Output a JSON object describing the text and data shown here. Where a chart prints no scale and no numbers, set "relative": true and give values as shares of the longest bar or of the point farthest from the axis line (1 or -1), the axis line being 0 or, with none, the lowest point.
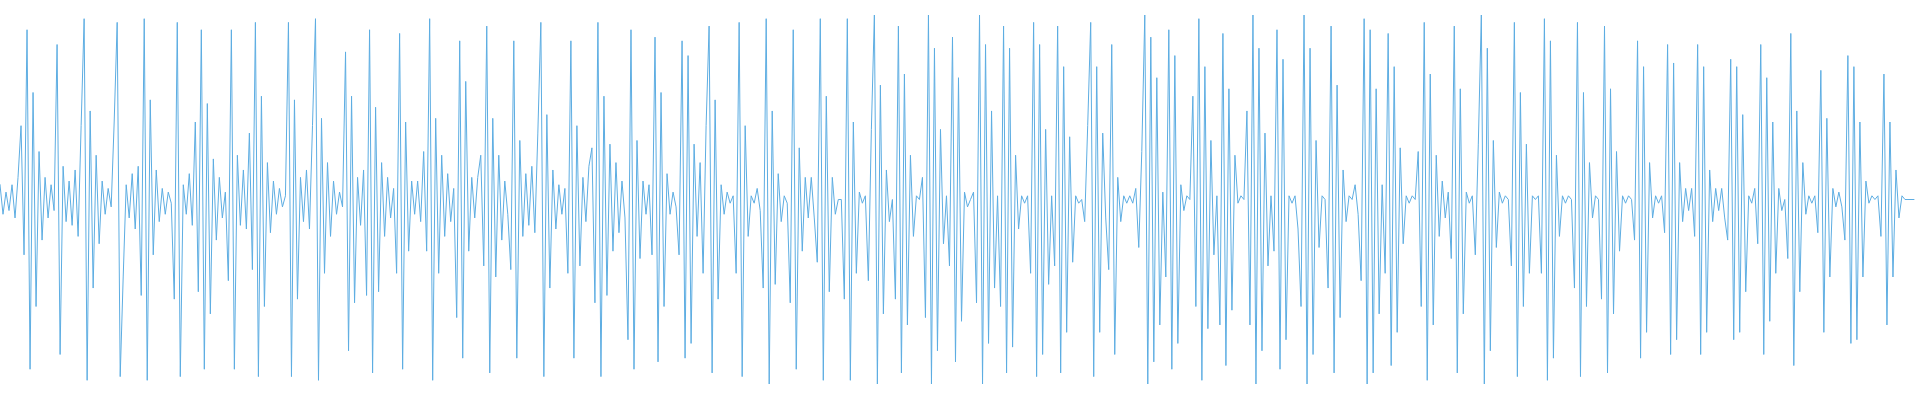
{
  "chart_data": {
    "type": "line",
    "relative": true,
    "color": "#5dade2",
    "marker": "none",
    "line_style": "solid",
    "tick_labels": false,
    "categories": [
      null,
      null,
      null,
      null,
      null,
      null,
      null,
      null,
      null,
      null,
      null,
      null,
      null,
      null,
      null,
      null,
      null,
      null,
      null,
      null,
      null,
      null,
      null,
      null,
      null,
      null,
      null,
      null,
      null,
      null,
      null,
      null,
      null,
      null,
      null,
      null,
      null,
      null,
      null,
      null,
      null,
      null,
      null,
      null,
      null,
      null,
      null,
      null,
      null,
      null,
      null,
      null,
      null,
      null,
      null,
      null,
      null,
      null,
      null,
      null,
      null,
      null,
      null,
      null,
      null,
      null,
      null,
      null,
      null,
      null,
      null,
      null,
      null,
      null,
      null,
      null,
      null,
      null,
      null,
      null,
      null,
      null,
      null,
      null,
      null,
      null,
      null,
      null,
      null,
      null,
      null,
      null,
      null,
      null,
      null,
      null,
      null,
      null,
      null,
      null,
      null,
      null,
      null,
      null,
      null,
      null,
      null,
      null,
      null,
      null,
      null,
      null,
      null,
      null,
      null,
      null,
      null,
      null,
      null,
      null,
      null,
      null,
      null,
      null,
      null,
      null,
      null,
      null,
      null,
      null,
      null,
      null,
      null,
      null,
      null,
      null,
      null,
      null,
      null,
      null,
      null,
      null,
      null,
      null,
      null,
      null,
      null,
      null,
      null,
      null,
      null,
      null,
      null,
      null,
      null,
      null,
      null,
      null,
      null,
      null,
      null,
      null,
      null,
      null,
      null,
      null,
      null,
      null,
      null,
      null,
      null,
      null,
      null,
      null,
      null,
      null,
      null,
      null,
      null,
      null,
      null,
      null,
      null,
      null,
      null,
      null,
      null,
      null,
      null,
      null,
      null,
      null,
      null,
      null,
      null,
      null,
      null,
      null,
      null,
      null,
      null,
      null,
      null,
      null,
      null,
      null,
      null,
      null,
      null,
      null,
      null,
      null,
      null,
      null,
      null,
      null,
      null,
      null,
      null,
      null,
      null,
      null,
      null,
      null,
      null,
      null,
      null,
      null,
      null,
      null,
      null,
      null,
      null,
      null,
      null,
      null,
      null,
      null,
      null,
      null,
      null,
      null,
      null,
      null,
      null,
      null,
      null,
      null,
      null,
      null,
      null,
      null,
      null,
      null,
      null,
      null,
      null,
      null,
      null,
      null,
      null,
      null,
      null,
      null,
      null,
      null,
      null,
      null,
      null,
      null,
      null,
      null,
      null,
      null,
      null,
      null,
      null,
      null,
      null,
      null,
      null,
      null,
      null,
      null,
      null,
      null,
      null,
      null,
      null,
      null,
      null,
      null,
      null,
      null,
      null,
      null,
      null,
      null,
      null,
      null,
      null,
      null,
      null,
      null,
      null,
      null,
      null,
      null,
      null,
      null,
      null,
      null,
      null,
      null,
      null,
      null,
      null,
      null,
      null,
      null,
      null,
      null,
      null,
      null,
      null,
      null,
      null,
      null,
      null,
      null,
      null,
      null,
      null,
      null,
      null,
      null,
      null,
      null,
      null,
      null,
      null,
      null,
      null,
      null,
      null,
      null,
      null,
      null,
      null,
      null,
      null,
      null,
      null,
      null,
      null,
      null,
      null,
      null,
      null,
      null,
      null,
      null,
      null,
      null,
      null,
      null,
      null,
      null,
      null,
      null,
      null,
      null,
      null,
      null,
      null,
      null,
      null,
      null,
      null,
      null,
      null,
      null,
      null,
      null,
      null,
      null,
      null,
      null,
      null,
      null,
      null,
      null,
      null,
      null,
      null,
      null,
      null,
      null,
      null,
      null,
      null,
      null,
      null,
      null,
      null,
      null,
      null,
      null,
      null,
      null,
      null,
      null,
      null,
      null,
      null,
      null,
      null,
      null,
      null,
      null,
      null,
      null,
      null,
      null,
      null,
      null,
      null,
      null,
      null,
      null,
      null,
      null,
      null,
      null,
      null,
      null,
      null,
      null,
      null,
      null,
      null,
      null,
      null,
      null,
      null,
      null,
      null,
      null,
      null,
      null,
      null,
      null,
      null,
      null,
      null,
      null,
      null,
      null,
      null,
      null,
      null,
      null,
      null,
      null,
      null,
      null,
      null,
      null,
      null,
      null,
      null,
      null,
      null,
      null,
      null,
      null,
      null,
      null,
      null,
      null,
      null,
      null,
      null,
      null,
      null,
      null,
      null,
      null,
      null,
      null,
      null,
      null,
      null,
      null,
      null,
      null,
      null,
      null,
      null,
      null,
      null,
      null,
      null,
      null,
      null,
      null,
      null,
      null,
      null,
      null,
      null,
      null,
      null,
      null,
      null,
      null,
      null,
      null,
      null,
      null,
      null,
      null,
      null,
      null,
      null,
      null,
      null,
      null,
      null,
      null,
      null,
      null,
      null,
      null,
      null,
      null,
      null,
      null,
      null,
      null,
      null,
      null,
      null,
      null,
      null,
      null,
      null,
      null,
      null,
      null,
      null,
      null,
      null,
      null,
      null,
      null,
      null,
      null,
      null,
      null,
      null,
      null,
      null,
      null,
      null,
      null,
      null,
      null,
      null,
      null,
      null,
      null,
      null,
      null,
      null,
      null,
      null,
      null,
      null,
      null,
      null,
      null,
      null,
      null,
      null,
      null,
      null,
      null,
      null,
      null,
      null,
      null,
      null,
      null,
      null,
      null,
      null,
      null,
      null,
      null,
      null,
      null,
      null,
      null,
      null,
      null,
      null,
      null,
      null,
      null,
      null,
      null,
      null,
      null,
      null,
      null,
      null,
      null,
      null,
      null,
      null,
      null,
      null,
      null,
      null,
      null,
      null,
      null,
      null,
      null,
      null,
      null,
      null,
      null,
      null,
      null,
      null,
      null,
      null,
      null
    ],
    "values": [
      0.54,
      0.46,
      0.52,
      0.47,
      0.54,
      0.45,
      0.56,
      0.7,
      0.35,
      0.96,
      0.04,
      0.79,
      0.21,
      0.63,
      0.39,
      0.56,
      0.45,
      0.54,
      0.47,
      0.92,
      0.08,
      0.59,
      0.44,
      0.55,
      0.43,
      0.58,
      0.4,
      0.7,
      0.99,
      0.01,
      0.74,
      0.26,
      0.62,
      0.38,
      0.55,
      0.46,
      0.53,
      0.48,
      0.71,
      0.98,
      0.02,
      0.29,
      0.54,
      0.45,
      0.57,
      0.42,
      0.59,
      0.24,
      0.99,
      0.01,
      0.77,
      0.35,
      0.58,
      0.44,
      0.53,
      0.46,
      0.52,
      0.49,
      0.23,
      0.98,
      0.02,
      0.54,
      0.46,
      0.57,
      0.43,
      0.71,
      0.25,
      0.96,
      0.04,
      0.76,
      0.19,
      0.61,
      0.39,
      0.56,
      0.45,
      0.52,
      0.28,
      0.96,
      0.04,
      0.62,
      0.43,
      0.58,
      0.42,
      0.68,
      0.31,
      0.98,
      0.02,
      0.78,
      0.21,
      0.6,
      0.41,
      0.55,
      0.46,
      0.53,
      0.48,
      0.51,
      0.98,
      0.02,
      0.77,
      0.23,
      0.56,
      0.44,
      0.58,
      0.42,
      0.7,
      0.99,
      0.01,
      0.72,
      0.3,
      0.6,
      0.4,
      0.55,
      0.46,
      0.52,
      0.48,
      0.9,
      0.09,
      0.78,
      0.22,
      0.56,
      0.43,
      0.58,
      0.24,
      0.96,
      0.03,
      0.75,
      0.25,
      0.6,
      0.4,
      0.56,
      0.45,
      0.53,
      0.3,
      0.95,
      0.04,
      0.71,
      0.36,
      0.55,
      0.46,
      0.55,
      0.44,
      0.63,
      0.36,
      0.99,
      0.01,
      0.72,
      0.3,
      0.62,
      0.4,
      0.57,
      0.44,
      0.53,
      0.18,
      0.93,
      0.07,
      0.82,
      0.36,
      0.56,
      0.45,
      0.56,
      0.62,
      0.32,
      0.97,
      0.03,
      0.72,
      0.29,
      0.62,
      0.39,
      0.55,
      0.46,
      0.31,
      0.93,
      0.07,
      0.66,
      0.4,
      0.57,
      0.43,
      0.59,
      0.41,
      0.68,
      0.98,
      0.02,
      0.73,
      0.26,
      0.58,
      0.42,
      0.54,
      0.46,
      0.53,
      0.3,
      0.93,
      0.07,
      0.7,
      0.32,
      0.56,
      0.44,
      0.59,
      0.64,
      0.22,
      0.98,
      0.02,
      0.78,
      0.24,
      0.65,
      0.36,
      0.6,
      0.41,
      0.55,
      0.45,
      0.12,
      0.96,
      0.04,
      0.66,
      0.34,
      0.55,
      0.46,
      0.54,
      0.35,
      0.94,
      0.06,
      0.79,
      0.21,
      0.57,
      0.46,
      0.52,
      0.48,
      0.35,
      0.93,
      0.07,
      0.89,
      0.11,
      0.65,
      0.4,
      0.6,
      0.3,
      0.7,
      0.97,
      0.03,
      0.77,
      0.23,
      0.54,
      0.46,
      0.52,
      0.49,
      0.51,
      0.3,
      0.98,
      0.02,
      0.7,
      0.4,
      0.51,
      0.49,
      0.53,
      0.47,
      0.26,
      0.99,
      0.0,
      0.74,
      0.27,
      0.57,
      0.44,
      0.51,
      0.49,
      0.22,
      0.96,
      0.04,
      0.64,
      0.36,
      0.56,
      0.45,
      0.56,
      0.45,
      0.33,
      0.99,
      0.01,
      0.78,
      0.25,
      0.56,
      0.46,
      0.5,
      0.5,
      0.23,
      0.99,
      0.01,
      0.71,
      0.3,
      0.52,
      0.49,
      0.51,
      0.28,
      0.69,
      1.0,
      0.0,
      0.81,
      0.19,
      0.58,
      0.44,
      0.5,
      0.23,
      0.97,
      0.03,
      0.84,
      0.16,
      0.62,
      0.4,
      0.51,
      0.5,
      0.56,
      0.18,
      1.0,
      0.0,
      0.91,
      0.09,
      0.69,
      0.38,
      0.51,
      0.32,
      0.94,
      0.06,
      0.83,
      0.17,
      0.52,
      0.48,
      0.5,
      0.52,
      0.22,
      1.0,
      0.0,
      0.92,
      0.11,
      0.74,
      0.26,
      0.51,
      0.21,
      0.97,
      0.03,
      0.91,
      0.1,
      0.62,
      0.42,
      0.51,
      0.49,
      0.51,
      0.3,
      0.98,
      0.02,
      0.92,
      0.08,
      0.69,
      0.27,
      0.51,
      0.32,
      0.97,
      0.03,
      0.86,
      0.14,
      0.67,
      0.33,
      0.51,
      0.49,
      0.5,
      0.44,
      0.7,
      0.98,
      0.02,
      0.86,
      0.14,
      0.68,
      0.45,
      0.31,
      0.92,
      0.08,
      0.56,
      0.44,
      0.51,
      0.49,
      0.51,
      0.49,
      0.53,
      0.37,
      0.63,
      1.0,
      0.0,
      0.94,
      0.06,
      0.83,
      0.16,
      0.52,
      0.29,
      0.96,
      0.04,
      0.89,
      0.11,
      0.54,
      0.47,
      0.51,
      0.5,
      0.78,
      0.21,
      0.99,
      0.01,
      0.86,
      0.15,
      0.66,
      0.35,
      0.51,
      0.16,
      0.95,
      0.05,
      0.8,
      0.2,
      0.62,
      0.49,
      0.51,
      0.5,
      0.74,
      0.16,
      1.0,
      0.0,
      0.91,
      0.09,
      0.68,
      0.32,
      0.51,
      0.36,
      0.96,
      0.04,
      0.88,
      0.12,
      0.51,
      0.49,
      0.51,
      0.42,
      0.21,
      1.0,
      0.0,
      0.91,
      0.08,
      0.66,
      0.37,
      0.51,
      0.5,
      0.26,
      0.97,
      0.03,
      0.81,
      0.18,
      0.58,
      0.44,
      0.51,
      0.5,
      0.54,
      0.46,
      0.28,
      0.99,
      0.0,
      0.96,
      0.03,
      0.8,
      0.19,
      0.54,
      0.3,
      0.95,
      0.05,
      0.86,
      0.14,
      0.64,
      0.38,
      0.51,
      0.49,
      0.51,
      0.5,
      0.63,
      0.21,
      0.98,
      0.01,
      0.84,
      0.16,
      0.62,
      0.4,
      0.55,
      0.45,
      0.52,
      0.34,
      0.97,
      0.03,
      0.8,
      0.19,
      0.52,
      0.49,
      0.51,
      0.35,
      0.65,
      1.0,
      0.0,
      0.91,
      0.09,
      0.66,
      0.37,
      0.52,
      0.49,
      0.51,
      0.5,
      0.32,
      0.98,
      0.02,
      0.79,
      0.21,
      0.65,
      0.3,
      0.51,
      0.5,
      0.51,
      0.3,
      0.99,
      0.01,
      0.93,
      0.07,
      0.62,
      0.4,
      0.51,
      0.49,
      0.51,
      0.5,
      0.26,
      0.98,
      0.02,
      0.79,
      0.21,
      0.6,
      0.45,
      0.51,
      0.5,
      0.23,
      0.97,
      0.03,
      0.8,
      0.19,
      0.63,
      0.36,
      0.51,
      0.49,
      0.51,
      0.5,
      0.39,
      0.93,
      0.07,
      0.86,
      0.14,
      0.6,
      0.45,
      0.51,
      0.49,
      0.51,
      0.41,
      0.92,
      0.08,
      0.87,
      0.12,
      0.6,
      0.44,
      0.53,
      0.47,
      0.53,
      0.4,
      0.92,
      0.08,
      0.86,
      0.14,
      0.58,
      0.44,
      0.53,
      0.47,
      0.53,
      0.45,
      0.39,
      0.88,
      0.12,
      0.86,
      0.14,
      0.73,
      0.25,
      0.51,
      0.49,
      0.53,
      0.38,
      0.92,
      0.08,
      0.83,
      0.17,
      0.71,
      0.3,
      0.53,
      0.47,
      0.5,
      0.34,
      0.95,
      0.05,
      0.74,
      0.25,
      0.6,
      0.46,
      0.51,
      0.49,
      0.51,
      0.41,
      0.85,
      0.14,
      0.72,
      0.29,
      0.53,
      0.48,
      0.52,
      0.48,
      0.39,
      0.89,
      0.11,
      0.86,
      0.12,
      0.71,
      0.29,
      0.55,
      0.49,
      0.51,
      0.5,
      0.51,
      0.4,
      0.84,
      0.16,
      0.71,
      0.29,
      0.58,
      0.45,
      0.51,
      0.5,
      0.5,
      0.5,
      0.5,
      null,
      null
    ]
  }
}
